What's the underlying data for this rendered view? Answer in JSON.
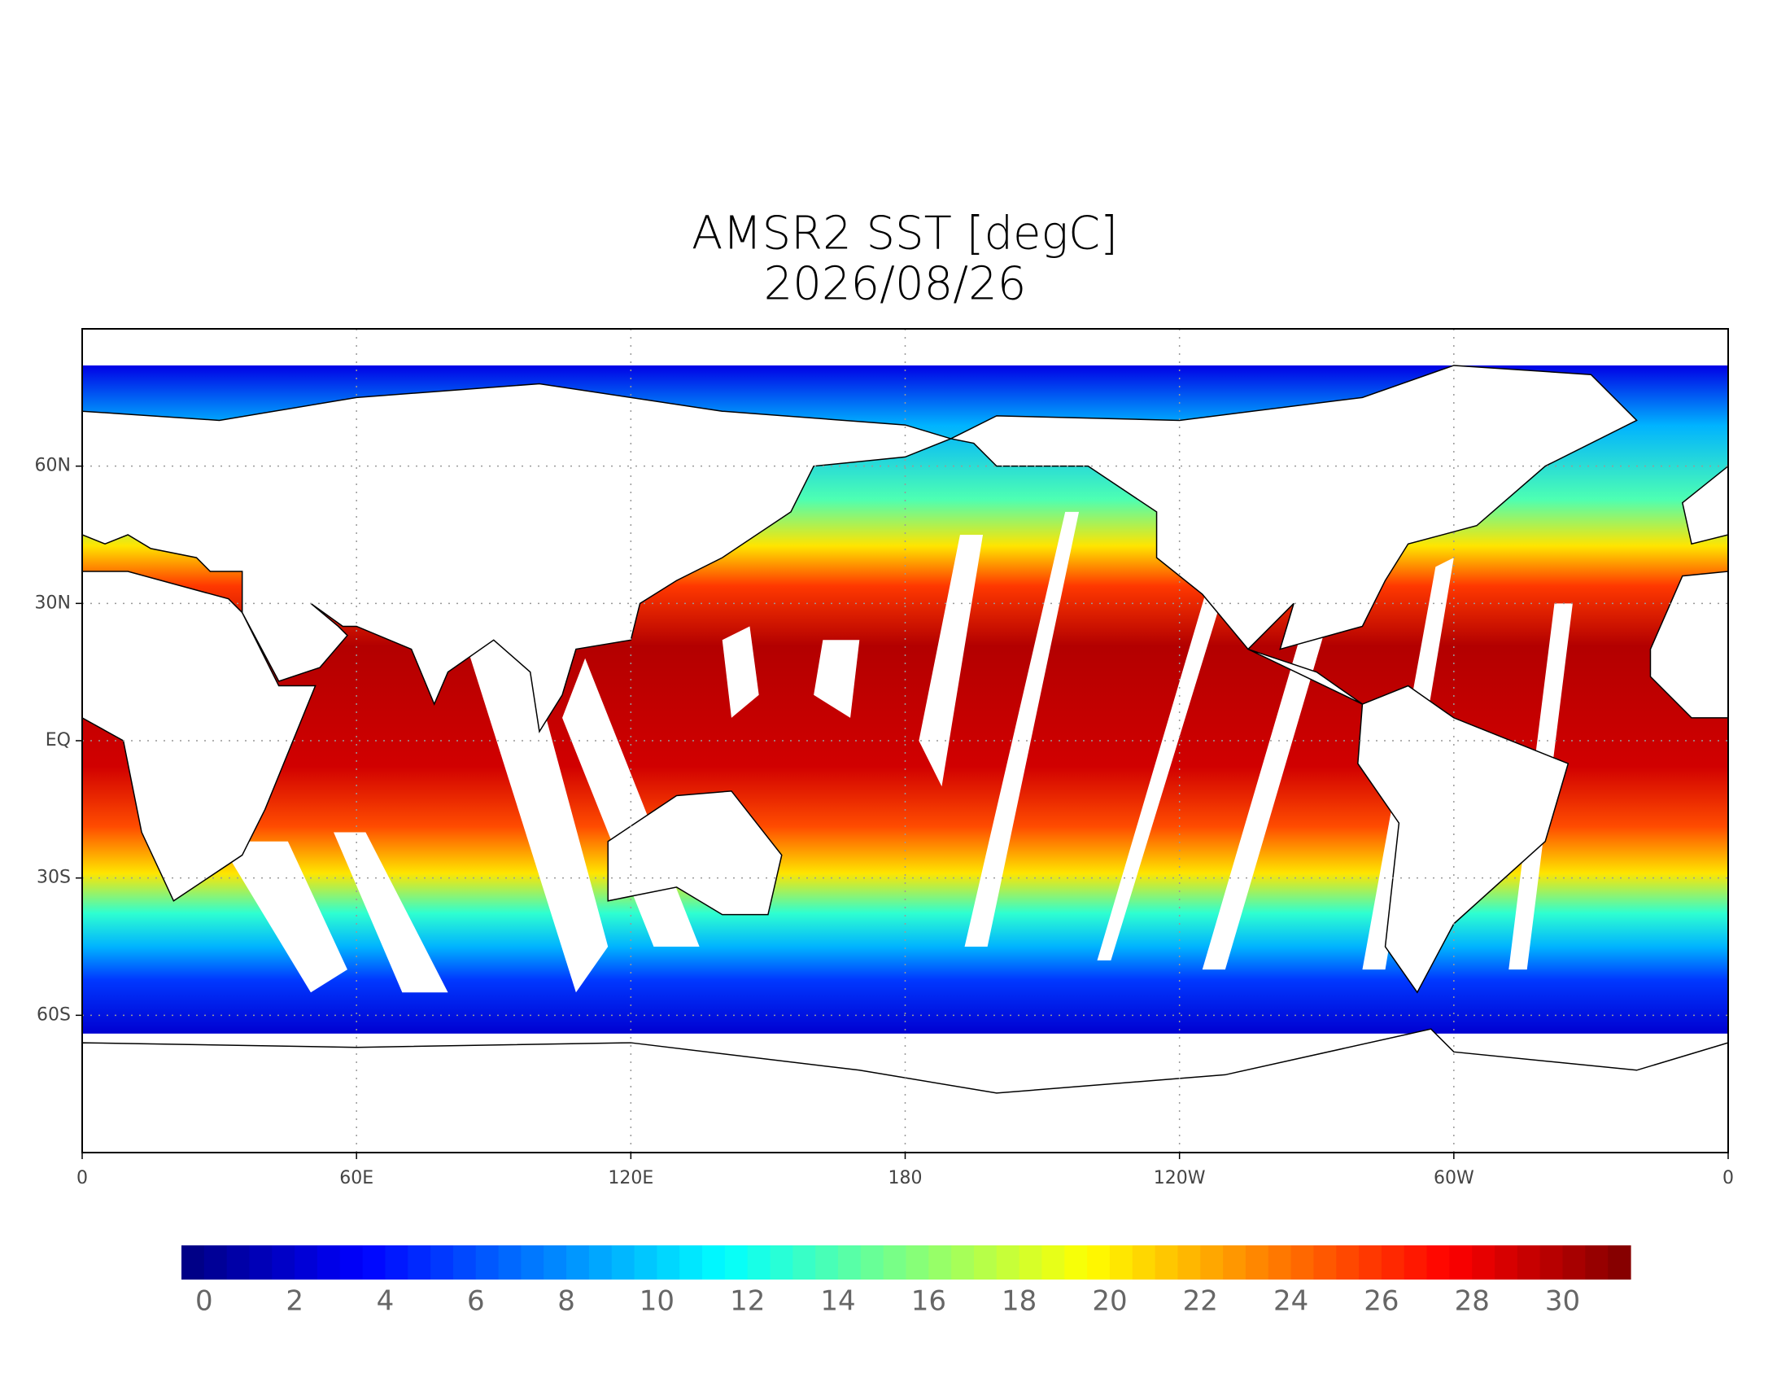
{
  "chart_data": {
    "type": "map",
    "title": "AMSR2 SST [degC]",
    "subtitle": "2026/08/26",
    "xlim": [
      0,
      360
    ],
    "xticks": [
      0,
      {
        "value": 60,
        "label": "60E"
      },
      {
        "value": 120,
        "label": "120E"
      },
      180,
      {
        "value": 240,
        "label": "120W"
      },
      {
        "value": 300,
        "label": "60W"
      },
      {
        "value": 360,
        "label": "0"
      }
    ],
    "ylim": [
      -90,
      90
    ],
    "yticks": [
      {
        "value": 60,
        "label": "60N"
      },
      {
        "value": 30,
        "label": "30N"
      },
      {
        "value": 0,
        "label": "EQ"
      },
      {
        "value": -30,
        "label": "30S"
      },
      {
        "value": -60,
        "label": "60S"
      }
    ],
    "grid": true,
    "colormap": "jet",
    "colorbar": {
      "lim": [
        -0.5,
        31.5
      ],
      "ticks": [
        0,
        2,
        4,
        6,
        8,
        10,
        12,
        14,
        16,
        18,
        20,
        22,
        24,
        26,
        28,
        30
      ]
    }
  }
}
